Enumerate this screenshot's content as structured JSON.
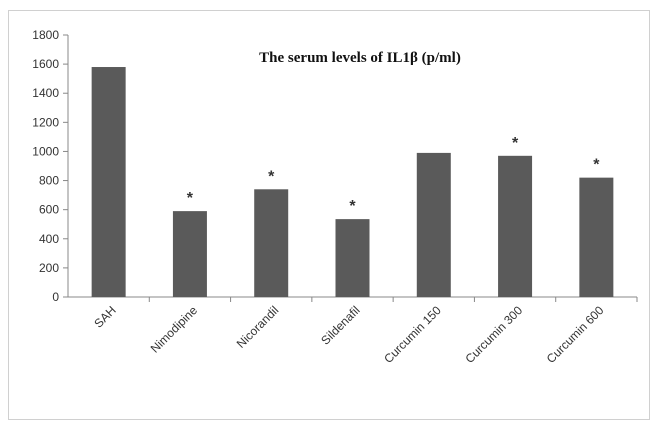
{
  "chart_data": {
    "type": "bar",
    "title": "The serum levels of IL1β (p/ml)",
    "categories": [
      "SAH",
      "Nimodipine",
      "Nicorandil",
      "Sildenafil",
      "Curcumin 150",
      "Curcumin 300",
      "Curcumin 600"
    ],
    "values": [
      1580,
      590,
      740,
      535,
      990,
      970,
      820
    ],
    "significance": [
      "",
      "*",
      "*",
      "*",
      "",
      "*",
      "*"
    ],
    "ylim": [
      0,
      1800
    ],
    "yticks": [
      0,
      200,
      400,
      600,
      800,
      1000,
      1200,
      1400,
      1600,
      1800
    ],
    "xlabel": "",
    "ylabel": "",
    "grid": false,
    "bar_color": "#5a5a5a"
  }
}
